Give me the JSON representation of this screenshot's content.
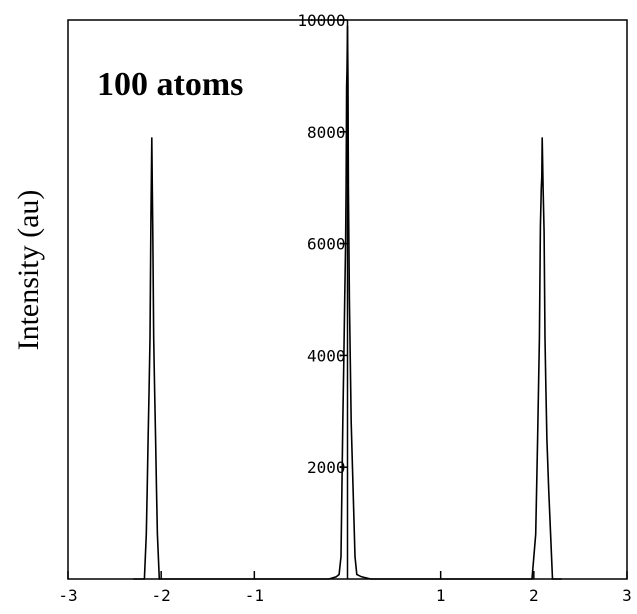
{
  "chart_data": {
    "type": "line",
    "title": "",
    "xlabel": "",
    "ylabel": "Intensity (au)",
    "annotation": "100 atoms",
    "xlim": [
      -3,
      3
    ],
    "ylim": [
      0,
      10000
    ],
    "x_ticks": [
      -3,
      -2,
      -1,
      1,
      2,
      3
    ],
    "y_ticks": [
      2000,
      4000,
      6000,
      8000,
      10000
    ],
    "grid": false,
    "legend": "none",
    "color": "#000000",
    "series": [
      {
        "x": [
          -2.3,
          -2.18,
          -2.16,
          -2.15,
          -2.14,
          -2.13,
          -2.12,
          -2.11,
          -2.105,
          -2.1,
          -2.095,
          -2.09,
          -2.08,
          -2.07,
          -2.06,
          -2.05,
          -2.04,
          -2.02,
          -1.9,
          -0.2,
          -0.12,
          -0.09,
          -0.07,
          -0.06,
          -0.05,
          -0.04,
          -0.03,
          -0.02,
          -0.015,
          -0.01,
          -0.005,
          0.0,
          0.005,
          0.01,
          0.015,
          0.02,
          0.03,
          0.04,
          0.06,
          0.08,
          0.1,
          0.15,
          0.25,
          1.9,
          1.98,
          2.02,
          2.03,
          2.04,
          2.05,
          2.06,
          2.07,
          2.08,
          2.085,
          2.09,
          2.1,
          2.11,
          2.12,
          2.13,
          2.14,
          2.16,
          2.18,
          2.2,
          2.3
        ],
        "y": [
          0,
          0,
          800,
          1600,
          2500,
          3400,
          4300,
          6400,
          7200,
          7900,
          7000,
          6200,
          4300,
          3400,
          2500,
          1600,
          800,
          0,
          0,
          0,
          40,
          80,
          400,
          1600,
          2800,
          3900,
          5000,
          6000,
          7000,
          8800,
          9100,
          9900,
          8900,
          7000,
          6000,
          5000,
          3900,
          2800,
          1600,
          400,
          80,
          40,
          0,
          0,
          0,
          800,
          1600,
          2500,
          3400,
          4300,
          6300,
          7000,
          7200,
          7900,
          7000,
          6200,
          4300,
          3400,
          2500,
          1600,
          800,
          0,
          0
        ]
      }
    ]
  }
}
